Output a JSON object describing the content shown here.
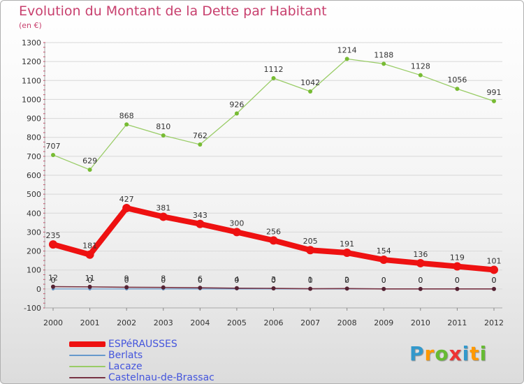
{
  "chart_data": {
    "type": "line",
    "title": "Evolution du Montant de la Dette par Habitant",
    "subtitle": "(en €)",
    "xlabel": "",
    "ylabel": "",
    "ylim": [
      -100,
      1300
    ],
    "yticks": [
      "-100",
      "0",
      "100",
      "200",
      "300",
      "400",
      "500",
      "600",
      "700",
      "800",
      "900",
      "1000",
      "1100",
      "1200",
      "1300"
    ],
    "ytick_values": [
      -100,
      0,
      100,
      200,
      300,
      400,
      500,
      600,
      700,
      800,
      900,
      1000,
      1100,
      1200,
      1300
    ],
    "x": [
      "2000",
      "2001",
      "2002",
      "2003",
      "2004",
      "2005",
      "2006",
      "2007",
      "2008",
      "2009",
      "2010",
      "2011",
      "2012"
    ],
    "grid": "horizontal",
    "legend_position": "bottom-left",
    "series": [
      {
        "name": "Lacaze",
        "color": "#99cc66",
        "values": [
          707,
          629,
          868,
          810,
          762,
          926,
          1112,
          1042,
          1214,
          1188,
          1128,
          1056,
          991
        ]
      },
      {
        "name": "Berlats",
        "color": "#6699cc",
        "values": [
          0,
          0,
          0,
          0,
          0,
          0,
          0,
          0,
          0,
          0,
          0,
          0,
          0
        ]
      },
      {
        "name": "Castelnau-de-Brassac",
        "color": "#773344",
        "values": [
          12,
          11,
          9,
          8,
          6,
          4,
          3,
          1,
          2,
          0,
          0,
          0,
          0
        ]
      },
      {
        "name": "ESPéRAUSSES",
        "color": "#ee1111",
        "values": [
          235,
          181,
          427,
          381,
          343,
          300,
          256,
          205,
          191,
          154,
          136,
          119,
          101
        ]
      }
    ]
  },
  "legend": [
    {
      "name": "ESPéRAUSSES",
      "color": "#ee1111"
    },
    {
      "name": "Berlats",
      "color": "#6699cc"
    },
    {
      "name": "Lacaze",
      "color": "#99cc66"
    },
    {
      "name": "Castelnau-de-Brassac",
      "color": "#773344"
    }
  ],
  "logo": {
    "letters": [
      "P",
      "r",
      "o",
      "x",
      "i",
      "t",
      "i"
    ],
    "colors": [
      "#3399cc",
      "#ff9900",
      "#66bb33",
      "#ee3333",
      "#3399cc",
      "#ff9900",
      "#66bb33"
    ]
  }
}
